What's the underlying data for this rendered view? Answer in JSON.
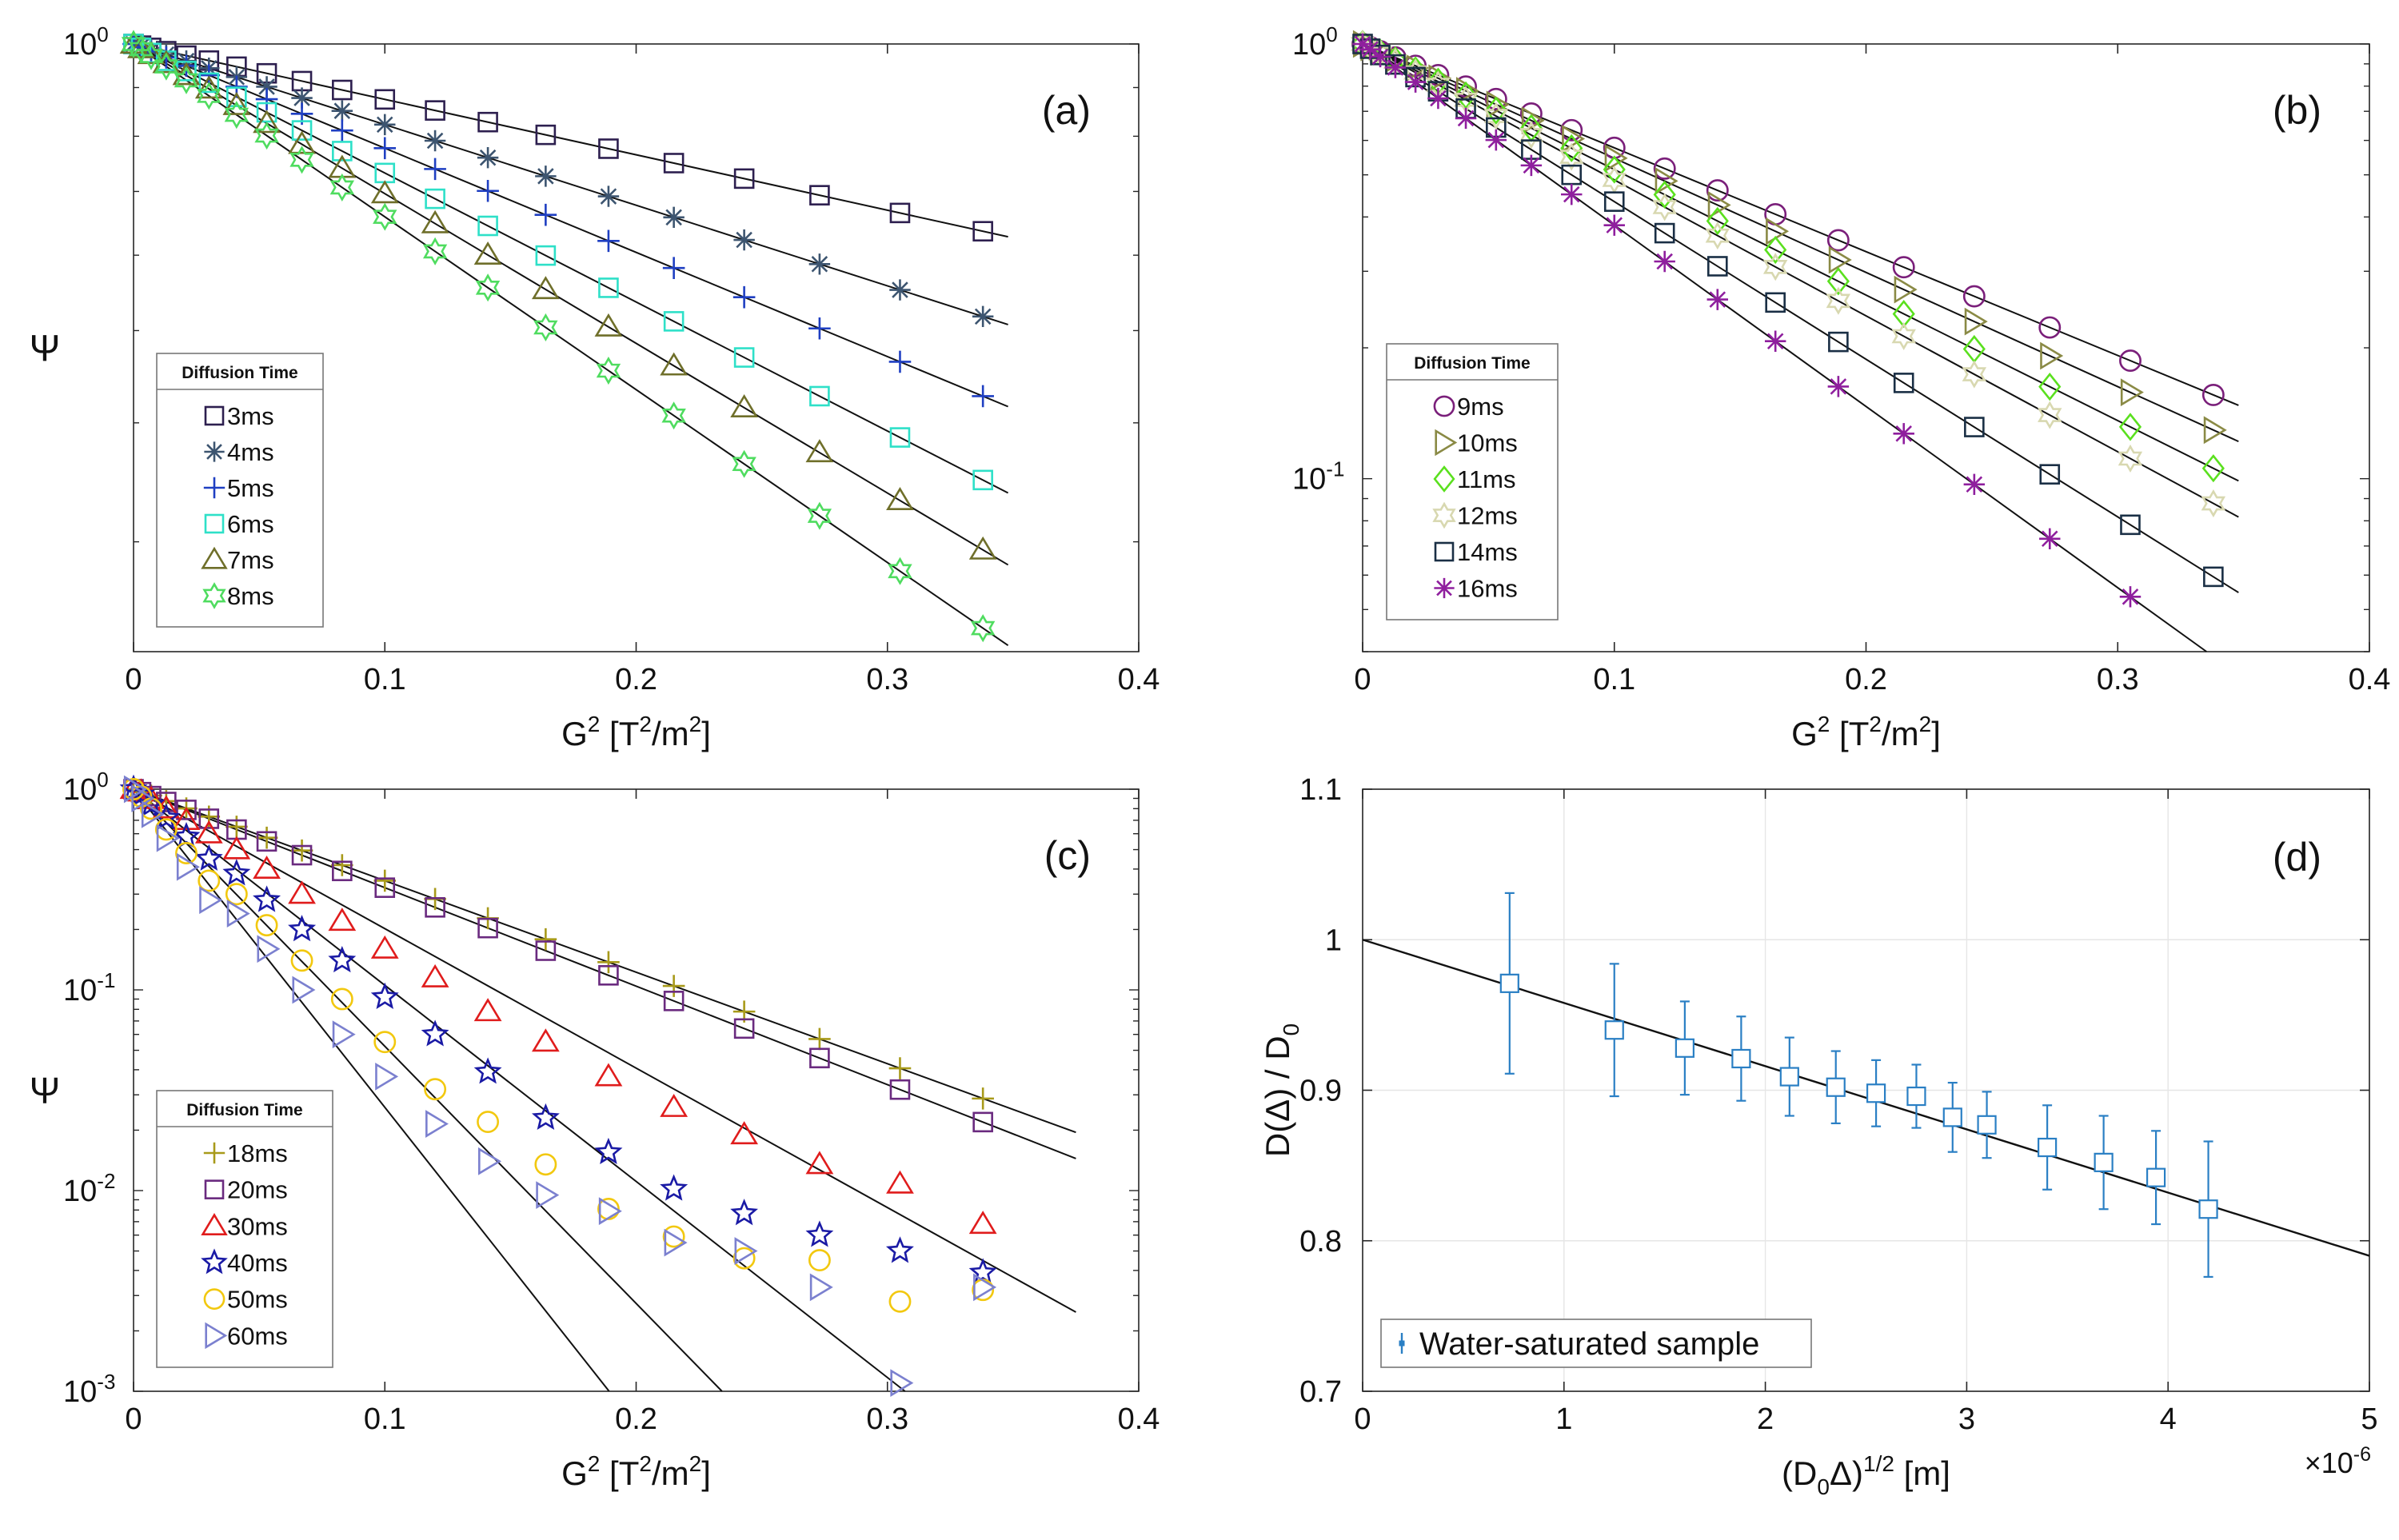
{
  "chart_data": [
    {
      "type": "scatter",
      "panel_label": "(a)",
      "yscale": "log",
      "xlabel_main": "G",
      "xlabel_sup1": "2",
      "xlabel_mid": " [T",
      "xlabel_sup2": "2",
      "xlabel_mid2": "/m",
      "xlabel_sup3": "2",
      "xlabel_end": "]",
      "ylabel": "Ψ",
      "xlim": [
        0,
        0.4
      ],
      "ylim": [
        0.23,
        1.0
      ],
      "xticks": [
        0,
        0.1,
        0.2,
        0.3,
        0.4
      ],
      "xtick_labels": [
        "0",
        "0.1",
        "0.2",
        "0.3",
        "0.4"
      ],
      "ytick_labels": [
        {
          "base": "10",
          "exp": "0"
        }
      ],
      "legend_title": "Diffusion Time",
      "legend_position": "left-middle",
      "x": [
        0,
        0.003,
        0.007,
        0.013,
        0.021,
        0.03,
        0.041,
        0.053,
        0.067,
        0.083,
        0.1,
        0.12,
        0.141,
        0.164,
        0.189,
        0.215,
        0.243,
        0.273,
        0.305,
        0.338
      ],
      "series": [
        {
          "name": "3ms",
          "marker": "square",
          "color": "#2d1f4f",
          "k": 1.34
        },
        {
          "name": "4ms",
          "marker": "asterisk",
          "color": "#3d5570",
          "k": 1.95
        },
        {
          "name": "5ms",
          "marker": "plus",
          "color": "#1f3fc2",
          "k": 2.52
        },
        {
          "name": "6ms",
          "marker": "square",
          "color": "#2ee0c8",
          "k": 3.12
        },
        {
          "name": "7ms",
          "marker": "triangle",
          "color": "#6f6f2a",
          "k": 3.62
        },
        {
          "name": "8ms",
          "marker": "hexagram",
          "color": "#4fdc5f",
          "k": 4.18
        }
      ]
    },
    {
      "type": "scatter",
      "panel_label": "(b)",
      "yscale": "log",
      "xlabel_main": "G",
      "xlabel_sup1": "2",
      "xlabel_mid": " [T",
      "xlabel_sup2": "2",
      "xlabel_mid2": "/m",
      "xlabel_sup3": "2",
      "xlabel_end": "]",
      "ylabel": "Ψ",
      "xlim": [
        0,
        0.4
      ],
      "ylim": [
        0.04,
        1.0
      ],
      "xticks": [
        0,
        0.1,
        0.2,
        0.3,
        0.4
      ],
      "xtick_labels": [
        "0",
        "0.1",
        "0.2",
        "0.3",
        "0.4"
      ],
      "ytick_labels": [
        {
          "base": "10",
          "exp": "0"
        },
        {
          "base": "10",
          "exp": "-1"
        }
      ],
      "legend_title": "Diffusion Time",
      "legend_position": "left-middle",
      "x": [
        0,
        0.003,
        0.007,
        0.013,
        0.021,
        0.03,
        0.041,
        0.053,
        0.067,
        0.083,
        0.1,
        0.12,
        0.141,
        0.164,
        0.189,
        0.215,
        0.243,
        0.273,
        0.305,
        0.338
      ],
      "series": [
        {
          "name": "9ms",
          "marker": "circle",
          "color": "#7a1f7a",
          "k": 5.5
        },
        {
          "name": "10ms",
          "marker": "triangle-right",
          "color": "#8a8a45",
          "k": 6.05
        },
        {
          "name": "11ms",
          "marker": "diamond",
          "color": "#5ae01e",
          "k": 6.65
        },
        {
          "name": "12ms",
          "marker": "hexagram",
          "color": "#d8d8b0",
          "k": 7.2
        },
        {
          "name": "14ms",
          "marker": "square",
          "color": "#1a2f45",
          "k": 8.35
        },
        {
          "name": "16ms",
          "marker": "asterisk",
          "color": "#8f1f9e",
          "k": 9.6
        }
      ]
    },
    {
      "type": "scatter",
      "panel_label": "(c)",
      "yscale": "log",
      "xlabel_main": "G",
      "xlabel_sup1": "2",
      "xlabel_mid": " [T",
      "xlabel_sup2": "2",
      "xlabel_mid2": "/m",
      "xlabel_sup3": "2",
      "xlabel_end": "]",
      "ylabel": "Ψ",
      "xlim": [
        0,
        0.4
      ],
      "ylim": [
        0.001,
        1.0
      ],
      "xticks": [
        0,
        0.1,
        0.2,
        0.3,
        0.4
      ],
      "xtick_labels": [
        "0",
        "0.1",
        "0.2",
        "0.3",
        "0.4"
      ],
      "ytick_labels": [
        {
          "base": "10",
          "exp": "0"
        },
        {
          "base": "10",
          "exp": "-1"
        },
        {
          "base": "10",
          "exp": "-2"
        },
        {
          "base": "10",
          "exp": "-3"
        }
      ],
      "legend_title": "Diffusion Time",
      "legend_position": "left-middle",
      "x": [
        0,
        0.003,
        0.007,
        0.013,
        0.021,
        0.03,
        0.041,
        0.053,
        0.067,
        0.083,
        0.1,
        0.12,
        0.141,
        0.164,
        0.189,
        0.215,
        0.243,
        0.273,
        0.305,
        0.338
      ],
      "series": [
        {
          "name": "18ms",
          "marker": "plus",
          "color": "#a89a1a",
          "k": 10.5,
          "line_end": 0.375
        },
        {
          "name": "20ms",
          "marker": "square",
          "color": "#6a2a7f",
          "k": 11.3,
          "line_end": 0.375
        },
        {
          "name": "30ms",
          "marker": "triangle",
          "color": "#e01c1c",
          "k": 16.0,
          "y": [
            1.0,
            0.97,
            0.89,
            0.8,
            0.7,
            0.6,
            0.5,
            0.4,
            0.3,
            0.22,
            0.16,
            0.115,
            0.078,
            0.055,
            0.037,
            0.026,
            0.019,
            0.0135,
            0.0108,
            0.0068
          ],
          "line_end": 0.375
        },
        {
          "name": "40ms",
          "marker": "pentagram",
          "color": "#1a1aa5",
          "k": 22.5,
          "y": [
            1.0,
            0.94,
            0.84,
            0.72,
            0.58,
            0.45,
            0.38,
            0.28,
            0.2,
            0.14,
            0.092,
            0.06,
            0.039,
            0.023,
            0.0155,
            0.0102,
            0.0077,
            0.006,
            0.005,
            0.0039
          ],
          "line_end": 0.375
        },
        {
          "name": "50ms",
          "marker": "circle",
          "color": "#f2c80f",
          "k": 29.5,
          "y": [
            1.0,
            0.92,
            0.8,
            0.63,
            0.48,
            0.35,
            0.3,
            0.21,
            0.14,
            0.09,
            0.055,
            0.032,
            0.022,
            0.0135,
            0.0081,
            0.0059,
            0.0046,
            0.0045,
            0.0028,
            0.0032
          ],
          "line_end": 0.305
        },
        {
          "name": "60ms",
          "marker": "triangle-right",
          "color": "#7b80cf",
          "k": 36.5,
          "y": [
            1.0,
            0.9,
            0.75,
            0.57,
            0.41,
            0.28,
            0.24,
            0.16,
            0.1,
            0.06,
            0.037,
            0.0215,
            0.014,
            0.0095,
            0.0079,
            0.0055,
            0.005,
            0.0033,
            0.0011,
            0.0033
          ],
          "line_end": 0.24
        }
      ]
    },
    {
      "type": "scatter",
      "panel_label": "(d)",
      "errorbar": true,
      "xlabel": "(D0Δ)1/2 [m]",
      "xlabel_parts": {
        "open": "(D",
        "sub": "0",
        "mid": "Δ)",
        "sup": "1/2",
        "end": " [m]"
      },
      "ylabel_parts": {
        "main": "D(Δ) / D",
        "sub": "0"
      },
      "x_exponent_base": "×10",
      "x_exponent_power": "-6",
      "xlim": [
        0,
        5
      ],
      "ylim": [
        0.7,
        1.1
      ],
      "xticks": [
        0,
        1,
        2,
        3,
        4,
        5
      ],
      "xtick_labels": [
        "0",
        "1",
        "2",
        "3",
        "4",
        "5"
      ],
      "yticks": [
        0.7,
        0.8,
        0.9,
        1.0,
        1.1
      ],
      "ytick_labels": [
        "0.7",
        "0.8",
        "0.9",
        "1",
        "1.1"
      ],
      "grid": true,
      "legend_position": "bottom-left",
      "legend": [
        "Water-saturated sample"
      ],
      "color": "#2a7fc4",
      "x": [
        0.73,
        1.25,
        1.6,
        1.88,
        2.12,
        2.35,
        2.55,
        2.75,
        2.93,
        3.1,
        3.4,
        3.68,
        3.94,
        4.2
      ],
      "y": [
        0.971,
        0.94,
        0.928,
        0.921,
        0.909,
        0.902,
        0.898,
        0.896,
        0.882,
        0.877,
        0.862,
        0.852,
        0.842,
        0.821
      ],
      "err": [
        0.06,
        0.044,
        0.031,
        0.028,
        0.026,
        0.024,
        0.022,
        0.021,
        0.023,
        0.022,
        0.028,
        0.031,
        0.031,
        0.045
      ],
      "fit": {
        "x": [
          0,
          5
        ],
        "y": [
          1.0,
          0.79
        ]
      }
    }
  ]
}
